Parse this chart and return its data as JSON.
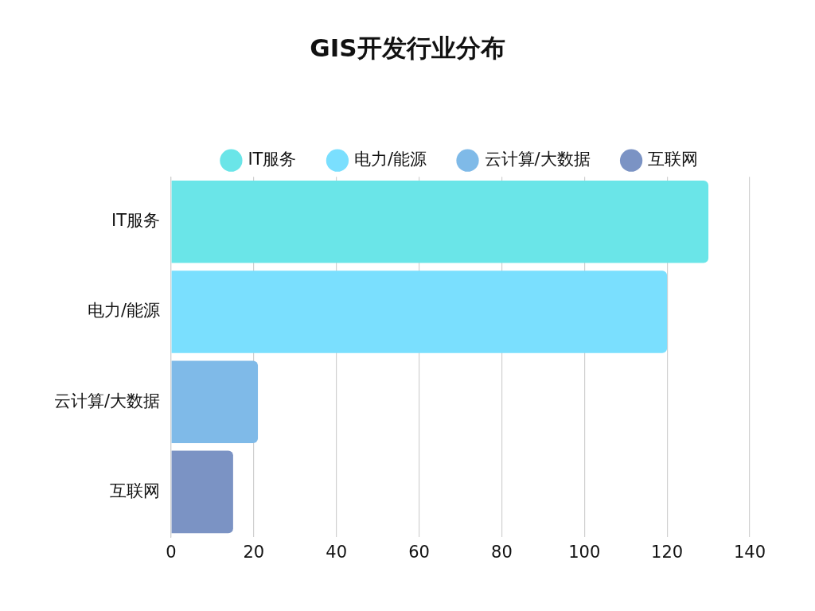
{
  "chart_data": {
    "type": "bar",
    "title": "GIS开发行业分布",
    "orientation": "horizontal",
    "categories": [
      "IT服务",
      "电力/能源",
      "云计算/大数据",
      "互联网"
    ],
    "series": [
      {
        "name": "IT服务",
        "color": "#6ae5e8",
        "values": [
          130,
          null,
          null,
          null
        ]
      },
      {
        "name": "电力/能源",
        "color": "#7adffe",
        "values": [
          null,
          120,
          null,
          null
        ]
      },
      {
        "name": "云计算/大数据",
        "color": "#7fbae8",
        "values": [
          null,
          null,
          21,
          null
        ]
      },
      {
        "name": "互联网",
        "color": "#7b93c4",
        "values": [
          null,
          null,
          null,
          15
        ]
      }
    ],
    "xlim": [
      0,
      140
    ],
    "xticks": [
      0,
      20,
      40,
      60,
      80,
      100,
      120,
      140
    ],
    "grid": "x",
    "legend": "top"
  }
}
